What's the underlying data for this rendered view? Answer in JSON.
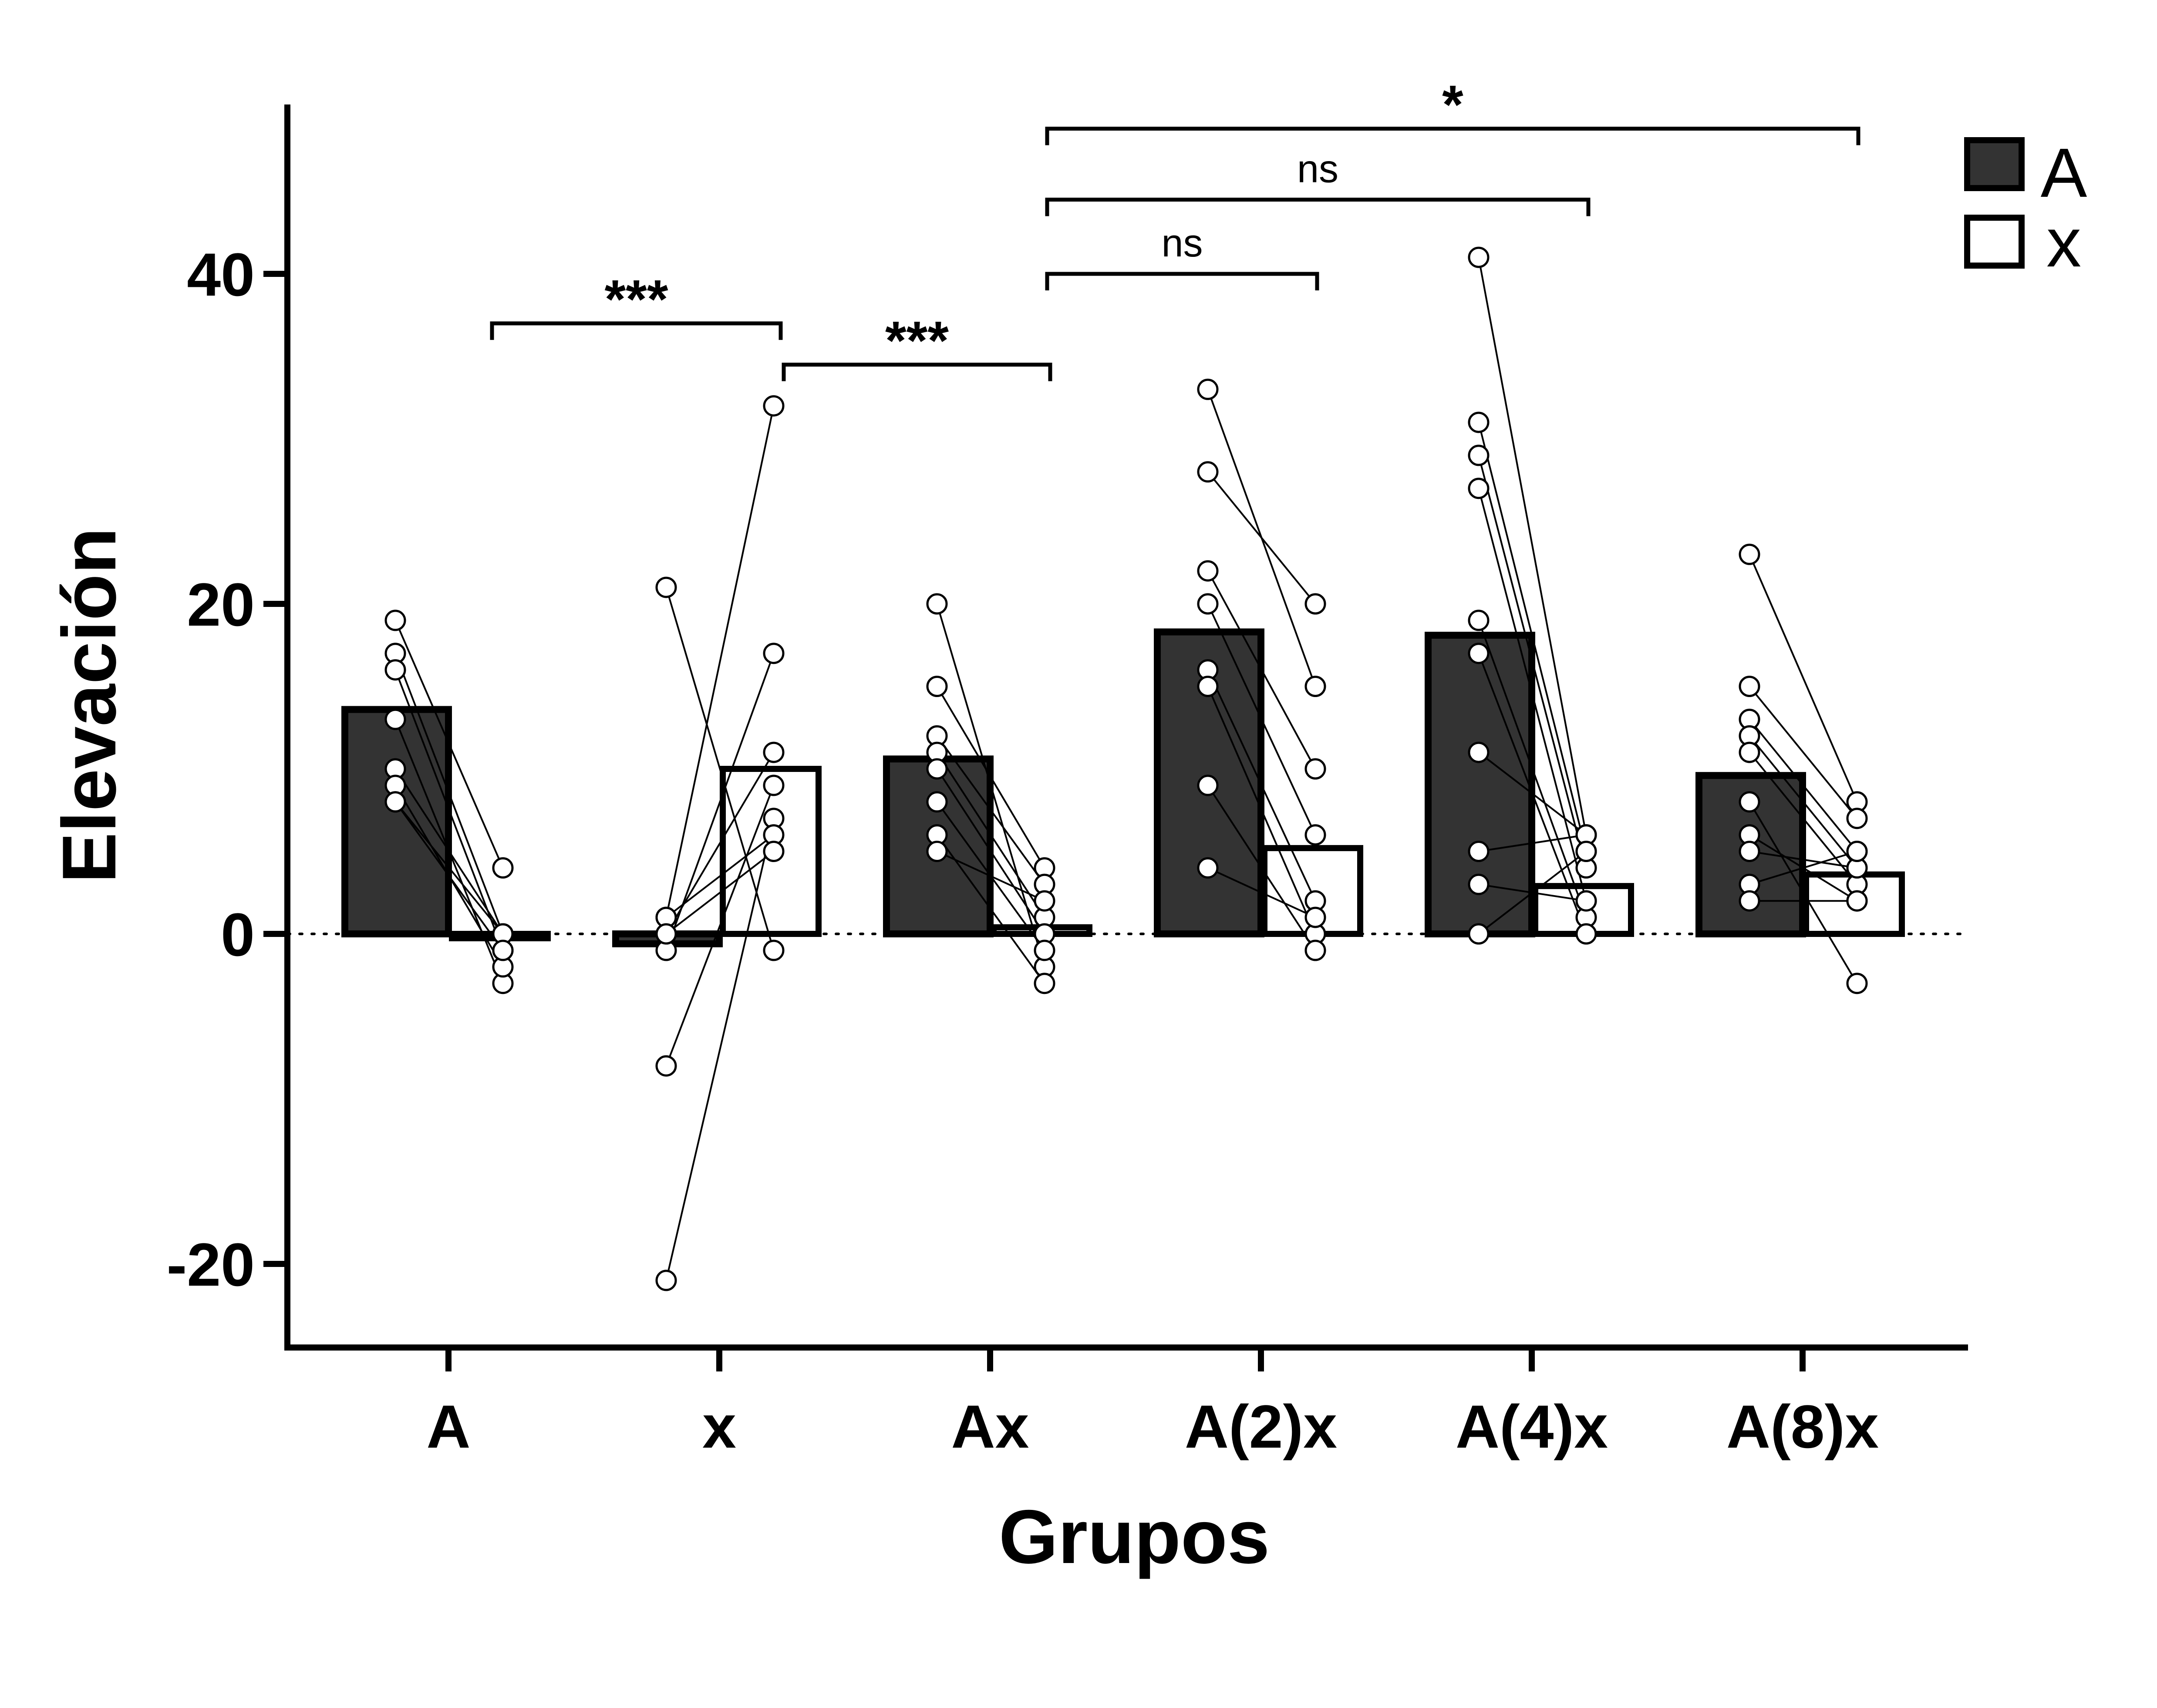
{
  "chart_data": {
    "type": "bar",
    "title": "",
    "xlabel": "Grupos",
    "ylabel": "Elevación",
    "ylim": [
      -25,
      50
    ],
    "yticks": [
      -20,
      0,
      20,
      40
    ],
    "reference_line": 0,
    "categories": [
      "A",
      "x",
      "Ax",
      "A(2)x",
      "A(4)x",
      "A(8)x"
    ],
    "series": [
      {
        "name": "A",
        "color": "#333333",
        "values": [
          13.6,
          -0.6,
          10.6,
          18.3,
          18.1,
          9.6
        ]
      },
      {
        "name": "x",
        "color": "#ffffff",
        "values": [
          0.0,
          10.0,
          0.4,
          5.2,
          2.9,
          3.6
        ]
      }
    ],
    "subjects": [
      [
        [
          19,
          4
        ],
        [
          17,
          0
        ],
        [
          16,
          -1
        ],
        [
          13,
          -3
        ],
        [
          10,
          0
        ],
        [
          9,
          -2
        ],
        [
          8,
          0
        ],
        [
          8,
          -1
        ]
      ],
      [
        [
          21,
          -1
        ],
        [
          1,
          32
        ],
        [
          -1,
          17
        ],
        [
          0,
          11
        ],
        [
          -8,
          9
        ],
        [
          -21,
          7
        ],
        [
          1,
          6
        ],
        [
          0,
          5
        ]
      ],
      [
        [
          20,
          -2
        ],
        [
          15,
          4
        ],
        [
          12,
          3
        ],
        [
          11,
          1
        ],
        [
          10,
          0
        ],
        [
          8,
          -1
        ],
        [
          6,
          -3
        ],
        [
          5,
          2
        ]
      ],
      [
        [
          33,
          15
        ],
        [
          28,
          20
        ],
        [
          22,
          10
        ],
        [
          20,
          6
        ],
        [
          16,
          2
        ],
        [
          15,
          0
        ],
        [
          9,
          -1
        ],
        [
          4,
          1
        ]
      ],
      [
        [
          41,
          6
        ],
        [
          31,
          5
        ],
        [
          29,
          4
        ],
        [
          27,
          2
        ],
        [
          19,
          1
        ],
        [
          17,
          0
        ],
        [
          11,
          6
        ],
        [
          5,
          6
        ],
        [
          3,
          2
        ],
        [
          0,
          5
        ]
      ],
      [
        [
          23,
          8
        ],
        [
          15,
          7
        ],
        [
          13,
          5
        ],
        [
          12,
          4
        ],
        [
          11,
          3
        ],
        [
          8,
          -3
        ],
        [
          6,
          2
        ],
        [
          5,
          4
        ],
        [
          3,
          5
        ],
        [
          2,
          2
        ]
      ]
    ],
    "significance": [
      {
        "label": "***",
        "from": "A",
        "to": "x",
        "level": 37
      },
      {
        "label": "***",
        "from": "x",
        "to": "Ax",
        "level": 34.5
      },
      {
        "label": "ns",
        "from": "Ax",
        "to": "A(2)x",
        "level": 40
      },
      {
        "label": "ns",
        "from": "Ax",
        "to": "A(4)x",
        "level": 44.5
      },
      {
        "label": "*",
        "from": "Ax",
        "to": "A(8)x",
        "level": 48.8
      }
    ],
    "legend": {
      "position": "top-right",
      "entries": [
        "A",
        "x"
      ]
    }
  }
}
